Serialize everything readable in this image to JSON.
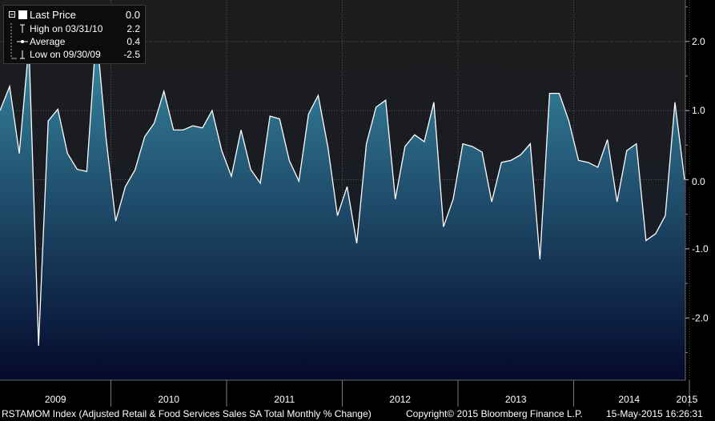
{
  "chart_data": {
    "type": "area",
    "series": [
      {
        "values": [
          1.0,
          1.35,
          0.38,
          1.95,
          -2.4,
          0.85,
          1.02,
          0.38,
          0.15,
          0.12,
          2.15,
          0.6,
          -0.6,
          -0.1,
          0.14,
          0.62,
          0.82,
          1.28,
          0.72,
          0.72,
          0.78,
          0.75,
          1.0,
          0.42,
          0.05,
          0.72,
          0.15,
          -0.05,
          0.92,
          0.88,
          0.28,
          -0.02,
          0.95,
          1.22,
          0.48,
          -0.52,
          -0.1,
          -0.92,
          0.52,
          1.05,
          1.15,
          -0.28,
          0.48,
          0.65,
          0.55,
          1.12,
          -0.68,
          -0.28,
          0.52,
          0.48,
          0.4,
          -0.32,
          0.25,
          0.28,
          0.36,
          0.52,
          -1.15,
          1.25,
          1.25,
          0.85,
          0.28,
          0.25,
          0.18,
          0.58,
          -0.32,
          0.42,
          0.52,
          -0.88,
          -0.78,
          -0.52,
          1.12,
          0.0
        ]
      }
    ],
    "ylim": [
      -2.9,
      2.6
    ],
    "y_ticks": [
      "2.0",
      "1.0",
      "0.0",
      "-1.0",
      "-2.0"
    ],
    "y_tick_values": [
      2.0,
      1.0,
      0.0,
      -1.0,
      -2.0
    ],
    "years": [
      "2009",
      "2010",
      "2011",
      "2012",
      "2013",
      "2014",
      "2015"
    ],
    "last_value_label": "0.0",
    "grid": true,
    "legend_position": "top-left",
    "colors": {
      "background": "#000000",
      "plot_top": "#1d1d1d",
      "plot_bottom": "#161b2a",
      "fill_top": "#3a8fa8",
      "fill_bottom": "#04092c",
      "line": "#ffffff",
      "grid": "#585858",
      "separator": "#7a7a7a"
    }
  },
  "legend": {
    "items": [
      {
        "icon": "filled-square-icon",
        "label": "Last Price",
        "value": "0.0"
      },
      {
        "icon": "high-marker-icon",
        "label": "High on 03/31/10",
        "value": "2.2"
      },
      {
        "icon": "average-marker-icon",
        "label": "Average",
        "value": "0.4"
      },
      {
        "icon": "low-marker-icon",
        "label": "Low on 09/30/09",
        "value": "-2.5"
      }
    ]
  },
  "footer": {
    "index_label": "RSTAMOM Index (Adjusted Retail & Food Services Sales SA Total Monthly % Change)",
    "copyright": "Copyright© 2015 Bloomberg Finance L.P.",
    "timestamp": "15-May-2015 16:26:31"
  }
}
